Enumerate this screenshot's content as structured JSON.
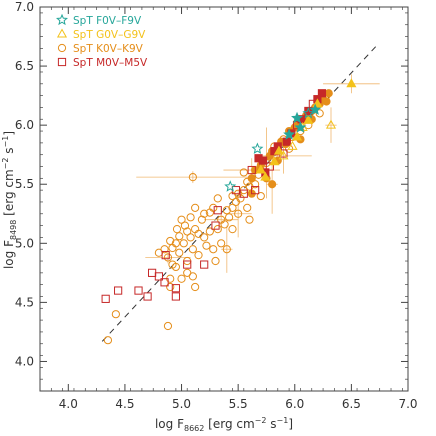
{
  "chart_data": {
    "type": "scatter",
    "xlabel": {
      "base": "log F",
      "sub": "8662",
      "rest": " [erg cm",
      "sup1": "−2",
      "rest2": " s",
      "sup2": "−1",
      "end": "]"
    },
    "ylabel": {
      "base": "log F",
      "sub": "8498",
      "rest": " [erg cm",
      "sup1": "−2",
      "rest2": " s",
      "sup2": "−1",
      "end": "]"
    },
    "xlim": [
      3.75,
      7.0
    ],
    "ylim": [
      3.75,
      7.0
    ],
    "x_ticks": [
      "4.0",
      "4.5",
      "5.0",
      "5.5",
      "6.0",
      "6.5",
      "7.0"
    ],
    "y_ticks": [
      "4.0",
      "4.5",
      "5.0",
      "5.5",
      "6.0",
      "6.5",
      "7.0"
    ],
    "legend_position": "top-left",
    "fit_line": {
      "x": [
        4.3,
        6.72
      ],
      "y": [
        4.17,
        6.67
      ],
      "style": "dashed",
      "color": "#333333"
    },
    "series": [
      {
        "name": "SpT F0V–F9V",
        "marker": "star",
        "color": "#26a69a",
        "points": [
          [
            5.43,
            5.48
          ],
          [
            5.67,
            5.8
          ],
          [
            6.02,
            6.06
          ],
          [
            6.05,
            5.98
          ],
          [
            6.12,
            6.1
          ],
          [
            5.95,
            5.92
          ],
          [
            6.18,
            6.13
          ]
        ]
      },
      {
        "name": "SpT G0V–G9V",
        "marker": "triangle",
        "color": "#f3c21b",
        "points": [
          [
            6.5,
            6.35
          ],
          [
            6.32,
            6.0
          ],
          [
            5.74,
            5.56
          ],
          [
            5.82,
            5.69
          ],
          [
            5.9,
            5.74
          ],
          [
            6.02,
            5.9
          ],
          [
            6.12,
            6.04
          ],
          [
            5.98,
            5.82
          ],
          [
            6.2,
            6.18
          ],
          [
            5.86,
            5.78
          ],
          [
            6.07,
            5.98
          ],
          [
            5.7,
            5.62
          ]
        ]
      },
      {
        "name": "SpT K0V–K9V",
        "marker": "circle",
        "color": "#e58e1a",
        "points": [
          [
            4.35,
            4.18
          ],
          [
            4.42,
            4.4
          ],
          [
            4.88,
            4.3
          ],
          [
            4.9,
            4.63
          ],
          [
            4.9,
            4.7
          ],
          [
            4.95,
            4.8
          ],
          [
            5.0,
            4.7
          ],
          [
            5.05,
            4.75
          ],
          [
            5.1,
            4.72
          ],
          [
            5.12,
            4.63
          ],
          [
            4.88,
            4.88
          ],
          [
            4.92,
            4.96
          ],
          [
            4.95,
            5.0
          ],
          [
            4.98,
            5.06
          ],
          [
            5.02,
            5.0
          ],
          [
            5.05,
            5.1
          ],
          [
            5.08,
            5.05
          ],
          [
            5.1,
            4.95
          ],
          [
            5.12,
            5.12
          ],
          [
            5.15,
            5.08
          ],
          [
            5.18,
            5.2
          ],
          [
            5.2,
            5.05
          ],
          [
            5.22,
            4.98
          ],
          [
            5.25,
            5.1
          ],
          [
            5.28,
            4.95
          ],
          [
            5.3,
            4.85
          ],
          [
            5.32,
            5.12
          ],
          [
            5.35,
            5.2
          ],
          [
            5.38,
            5.16
          ],
          [
            5.4,
            5.28
          ],
          [
            5.42,
            5.22
          ],
          [
            5.45,
            5.3
          ],
          [
            5.48,
            5.35
          ],
          [
            5.5,
            5.42
          ],
          [
            5.52,
            5.38
          ],
          [
            5.55,
            5.45
          ],
          [
            5.58,
            5.52
          ],
          [
            5.6,
            5.48
          ],
          [
            5.62,
            5.55
          ],
          [
            5.65,
            5.62
          ],
          [
            5.68,
            5.58
          ],
          [
            5.7,
            5.66
          ],
          [
            5.72,
            5.7
          ],
          [
            5.75,
            5.68
          ],
          [
            5.78,
            5.74
          ],
          [
            5.8,
            5.78
          ],
          [
            5.82,
            5.82
          ],
          [
            5.85,
            5.78
          ],
          [
            5.88,
            5.86
          ],
          [
            5.9,
            5.88
          ],
          [
            5.92,
            5.84
          ],
          [
            5.95,
            5.95
          ],
          [
            5.98,
            5.9
          ],
          [
            6.0,
            5.98
          ],
          [
            6.02,
            6.02
          ],
          [
            6.05,
            5.95
          ],
          [
            6.08,
            6.05
          ],
          [
            6.1,
            6.08
          ],
          [
            6.12,
            6.0
          ],
          [
            6.15,
            6.12
          ],
          [
            6.18,
            6.15
          ],
          [
            6.2,
            6.2
          ],
          [
            6.22,
            6.18
          ],
          [
            6.25,
            6.22
          ],
          [
            6.28,
            6.25
          ],
          [
            6.3,
            6.27
          ],
          [
            5.1,
            5.56
          ],
          [
            5.32,
            5.38
          ],
          [
            5.25,
            5.26
          ],
          [
            5.0,
            5.2
          ],
          [
            5.05,
            4.85
          ],
          [
            4.98,
            4.92
          ],
          [
            5.15,
            4.9
          ],
          [
            5.4,
            4.95
          ],
          [
            5.45,
            5.12
          ],
          [
            5.5,
            5.25
          ],
          [
            5.58,
            5.3
          ],
          [
            5.62,
            5.42
          ],
          [
            5.28,
            5.3
          ],
          [
            5.2,
            5.25
          ],
          [
            5.12,
            5.3
          ],
          [
            5.08,
            5.22
          ],
          [
            5.03,
            5.15
          ],
          [
            4.96,
            5.12
          ],
          [
            4.9,
            5.02
          ],
          [
            4.85,
            4.95
          ],
          [
            4.8,
            4.92
          ],
          [
            4.92,
            4.82
          ],
          [
            5.35,
            5.0
          ],
          [
            5.45,
            5.4
          ],
          [
            5.55,
            5.6
          ],
          [
            5.65,
            5.5
          ],
          [
            5.75,
            5.55
          ],
          [
            5.85,
            5.7
          ],
          [
            5.95,
            5.8
          ],
          [
            6.05,
            5.88
          ],
          [
            6.15,
            6.05
          ],
          [
            6.22,
            6.1
          ],
          [
            6.28,
            6.2
          ],
          [
            5.8,
            5.5
          ],
          [
            5.7,
            5.4
          ],
          [
            5.6,
            5.2
          ]
        ]
      },
      {
        "name": "SpT M0V–M5V",
        "marker": "square",
        "color": "#c62828",
        "points": [
          [
            4.33,
            4.53
          ],
          [
            4.44,
            4.6
          ],
          [
            4.62,
            4.6
          ],
          [
            4.7,
            4.55
          ],
          [
            4.74,
            4.75
          ],
          [
            4.8,
            4.72
          ],
          [
            4.85,
            4.67
          ],
          [
            4.86,
            4.9
          ],
          [
            4.95,
            4.62
          ],
          [
            5.05,
            4.82
          ],
          [
            5.2,
            4.82
          ],
          [
            4.95,
            4.55
          ],
          [
            5.3,
            5.15
          ],
          [
            5.32,
            5.28
          ],
          [
            5.48,
            5.45
          ],
          [
            5.55,
            5.42
          ],
          [
            5.62,
            5.62
          ],
          [
            5.68,
            5.72
          ],
          [
            5.74,
            5.6
          ],
          [
            5.78,
            5.65
          ],
          [
            5.82,
            5.78
          ],
          [
            5.85,
            5.82
          ],
          [
            5.9,
            5.76
          ],
          [
            5.93,
            5.86
          ],
          [
            5.97,
            5.93
          ],
          [
            6.02,
            6.0
          ],
          [
            6.06,
            6.05
          ],
          [
            6.12,
            6.12
          ],
          [
            6.16,
            6.18
          ],
          [
            6.2,
            6.22
          ],
          [
            6.24,
            6.27
          ],
          [
            5.65,
            5.45
          ],
          [
            5.72,
            5.7
          ]
        ]
      }
    ]
  }
}
